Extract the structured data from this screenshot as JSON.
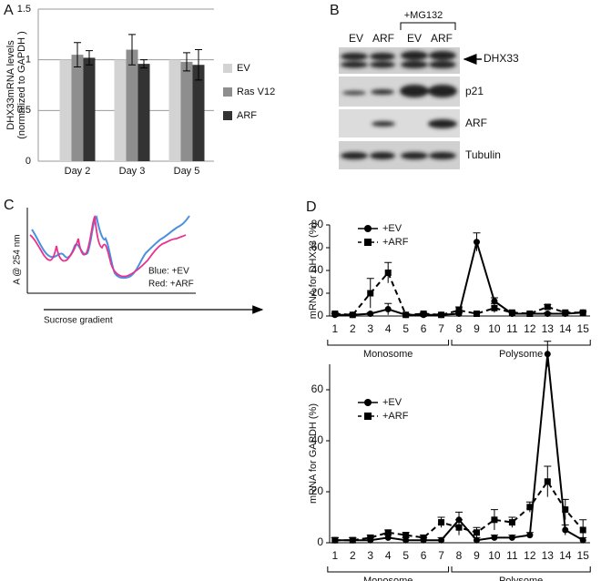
{
  "panel_letters": [
    "A",
    "B",
    "C",
    "D"
  ],
  "chart_data": [
    {
      "type": "bar",
      "ylabel": [
        "DHX33mRNA levels",
        "(normalized to GAPDH )"
      ],
      "categories": [
        "Day 2",
        "Day 3",
        "Day 5"
      ],
      "series": [
        {
          "name": "EV",
          "color": "#d3d3d3",
          "values": [
            1,
            1,
            1
          ]
        },
        {
          "name": "Ras V12",
          "color": "#8e8e8e",
          "values": [
            1.05,
            1.1,
            0.98
          ],
          "errors": [
            0.12,
            0.15,
            0.09
          ]
        },
        {
          "name": "ARF",
          "color": "#333333",
          "values": [
            1.02,
            0.96,
            0.95
          ],
          "errors": [
            0.07,
            0.04,
            0.15
          ]
        }
      ],
      "ylim": [
        0,
        1.5
      ],
      "yticks": [
        0,
        0.5,
        1,
        1.5
      ],
      "grid": true
    },
    {
      "type": "line",
      "ylabel": "mRNA for DHX33 (%)",
      "x": [
        1,
        2,
        3,
        4,
        5,
        6,
        7,
        8,
        9,
        10,
        11,
        12,
        13,
        14,
        15
      ],
      "series": [
        {
          "name": "+EV",
          "color": "#000000",
          "marker": "circle",
          "dash": false,
          "values": [
            1,
            1,
            2,
            6,
            1,
            1,
            1,
            2,
            65,
            13,
            2,
            2,
            2,
            2,
            3
          ],
          "errors": [
            1,
            1,
            1,
            5,
            1,
            1,
            1,
            1,
            8,
            3,
            1,
            1,
            1,
            1,
            1
          ]
        },
        {
          "name": "+ARF",
          "color": "#000000",
          "marker": "square",
          "dash": true,
          "values": [
            2,
            1,
            20,
            38,
            1,
            2,
            1,
            5,
            2,
            7,
            3,
            2,
            8,
            3,
            3
          ],
          "errors": [
            1,
            1,
            13,
            9,
            1,
            1,
            1,
            3,
            1,
            4,
            1,
            1,
            2,
            1,
            1
          ]
        }
      ],
      "xlim": [
        0.7,
        15.4
      ],
      "xticks": [
        1,
        2,
        3,
        4,
        5,
        6,
        7,
        8,
        9,
        10,
        11,
        12,
        13,
        14,
        15
      ],
      "ylim": [
        0,
        80
      ],
      "yticks": [
        0,
        20,
        40,
        60,
        80
      ],
      "groups": [
        {
          "label": "Monosome",
          "from": 1,
          "to": 7
        },
        {
          "label": "Polysome",
          "from": 8,
          "to": 15
        }
      ]
    },
    {
      "type": "line",
      "ylabel": "mRNA for GAPDH (%)",
      "x": [
        1,
        2,
        3,
        4,
        5,
        6,
        7,
        8,
        9,
        10,
        11,
        12,
        13,
        14,
        15
      ],
      "series": [
        {
          "name": "+EV",
          "color": "#000000",
          "marker": "circle",
          "dash": false,
          "values": [
            1,
            1,
            1,
            2,
            1,
            1,
            1,
            9,
            1,
            2,
            2,
            3,
            74,
            5,
            1
          ],
          "errors": [
            1,
            1,
            1,
            1,
            1,
            1,
            1,
            3,
            1,
            1,
            1,
            1,
            5,
            2,
            1
          ]
        },
        {
          "name": "+ARF",
          "color": "#000000",
          "marker": "square",
          "dash": true,
          "values": [
            1,
            1,
            2,
            4,
            3,
            2,
            8,
            6,
            4,
            9,
            8,
            14,
            24,
            13,
            5
          ],
          "errors": [
            1,
            1,
            1,
            1,
            1,
            1,
            2,
            3,
            2,
            4,
            2,
            2,
            6,
            4,
            4
          ]
        }
      ],
      "xlim": [
        0.7,
        15.4
      ],
      "xticks": [
        1,
        2,
        3,
        4,
        5,
        6,
        7,
        8,
        9,
        10,
        11,
        12,
        13,
        14,
        15
      ],
      "ylim": [
        0,
        80
      ],
      "yticks": [
        0,
        20,
        40,
        60
      ],
      "groups": [
        {
          "label": "Monosome",
          "from": 1,
          "to": 7
        },
        {
          "label": "Polysome",
          "from": 8,
          "to": 15
        }
      ]
    }
  ],
  "blot": {
    "treatment": "+MG132",
    "lanes": [
      "EV",
      "ARF",
      "EV",
      "ARF"
    ],
    "rows": [
      "DHX33",
      "p21",
      "ARF",
      "Tubulin"
    ]
  },
  "trace": {
    "ylabel": "A @ 254 nm",
    "xlabel": "Sucrose gradient",
    "legend": [
      "Blue: +EV",
      "Red:  +ARF"
    ]
  }
}
